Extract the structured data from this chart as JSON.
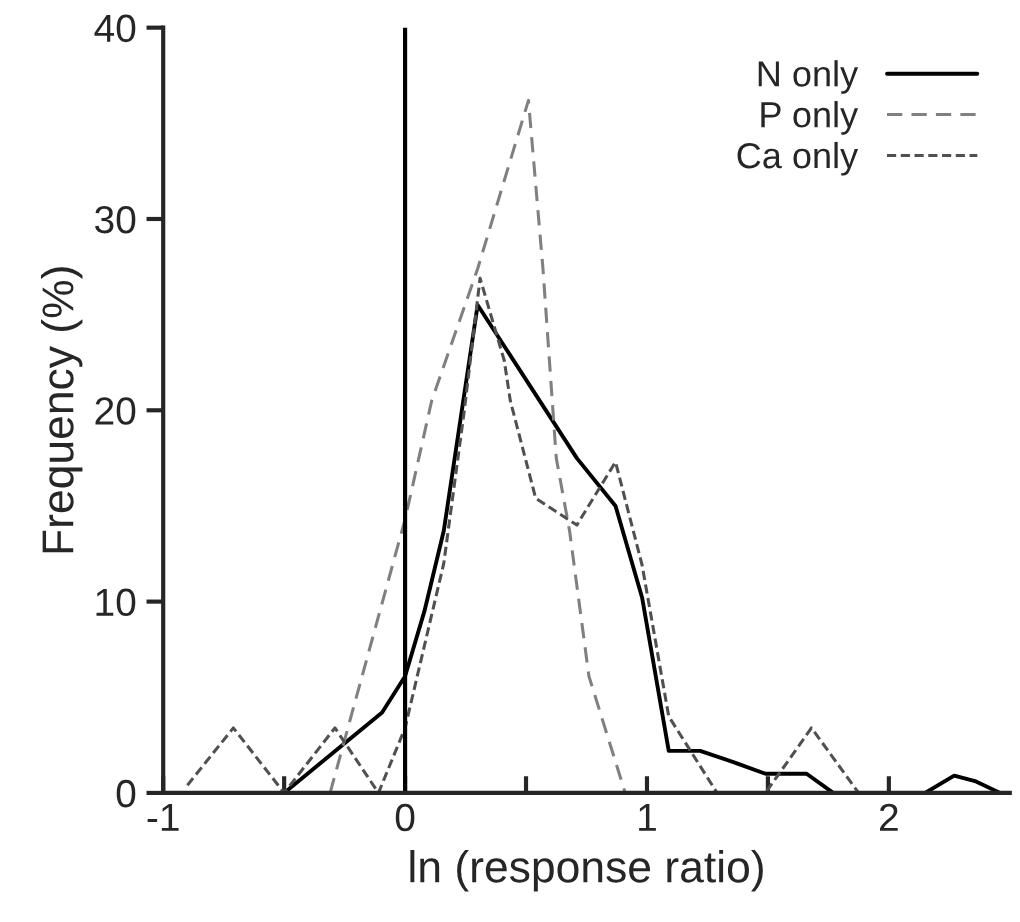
{
  "chart_data": {
    "type": "line",
    "xlabel": "ln (response ratio)",
    "ylabel": "Frequency (%)",
    "xlim": [
      -1,
      2.5
    ],
    "ylim": [
      0,
      40
    ],
    "xticks": [
      -1,
      {
        "value": -0.5,
        "label": null
      },
      0,
      {
        "value": 0.5,
        "label": null
      },
      1,
      {
        "value": 1.5,
        "label": null
      },
      2
    ],
    "yticks": [
      0,
      10,
      20,
      30,
      40
    ],
    "grid": false,
    "legend": "top right",
    "ref_lines": [
      {
        "axis": "x",
        "value": 0,
        "color": "#000000",
        "line_style": "solid"
      }
    ],
    "series": [
      {
        "name": "N only",
        "color": "#000000",
        "line_style": "solid",
        "x": [
          -0.5,
          -0.095,
          0,
          0.08,
          0.16,
          0.3,
          0.71,
          0.87,
          0.98,
          1.09,
          1.22,
          1.36,
          1.49,
          1.66,
          1.77,
          2.15,
          2.27,
          2.36,
          2.46
        ],
        "values": [
          0,
          4.2,
          6.1,
          9.5,
          13.7,
          25.5,
          17.5,
          15.0,
          10.2,
          2.2,
          2.2,
          1.6,
          1.0,
          1.0,
          0,
          0,
          0.9,
          0.6,
          0
        ]
      },
      {
        "name": "P only",
        "color": "#808080",
        "line_style": "dashed",
        "x": [
          -0.31,
          0,
          0.11,
          0.3,
          0.51,
          0.57,
          0.625,
          0.68,
          0.76,
          0.91
        ],
        "values": [
          0,
          14.3,
          20.5,
          27.4,
          36.2,
          27.4,
          17.5,
          13.7,
          6.1,
          0
        ]
      },
      {
        "name": "Ca only",
        "color": "#505050",
        "line_style": "dotted",
        "x": [
          -0.9,
          -0.71,
          -0.5,
          -0.29,
          -0.11,
          0,
          0.16,
          0.245,
          0.31,
          0.41,
          0.435,
          0.54,
          0.71,
          0.87,
          0.98,
          1.09,
          1.29,
          1.49,
          1.68,
          1.875
        ],
        "values": [
          0.4,
          3.4,
          0,
          3.4,
          0,
          3.4,
          12,
          20,
          26.9,
          22.6,
          20.5,
          15.4,
          14.0,
          17.3,
          11.9,
          4.0,
          0,
          0,
          3.4,
          0
        ]
      }
    ]
  }
}
